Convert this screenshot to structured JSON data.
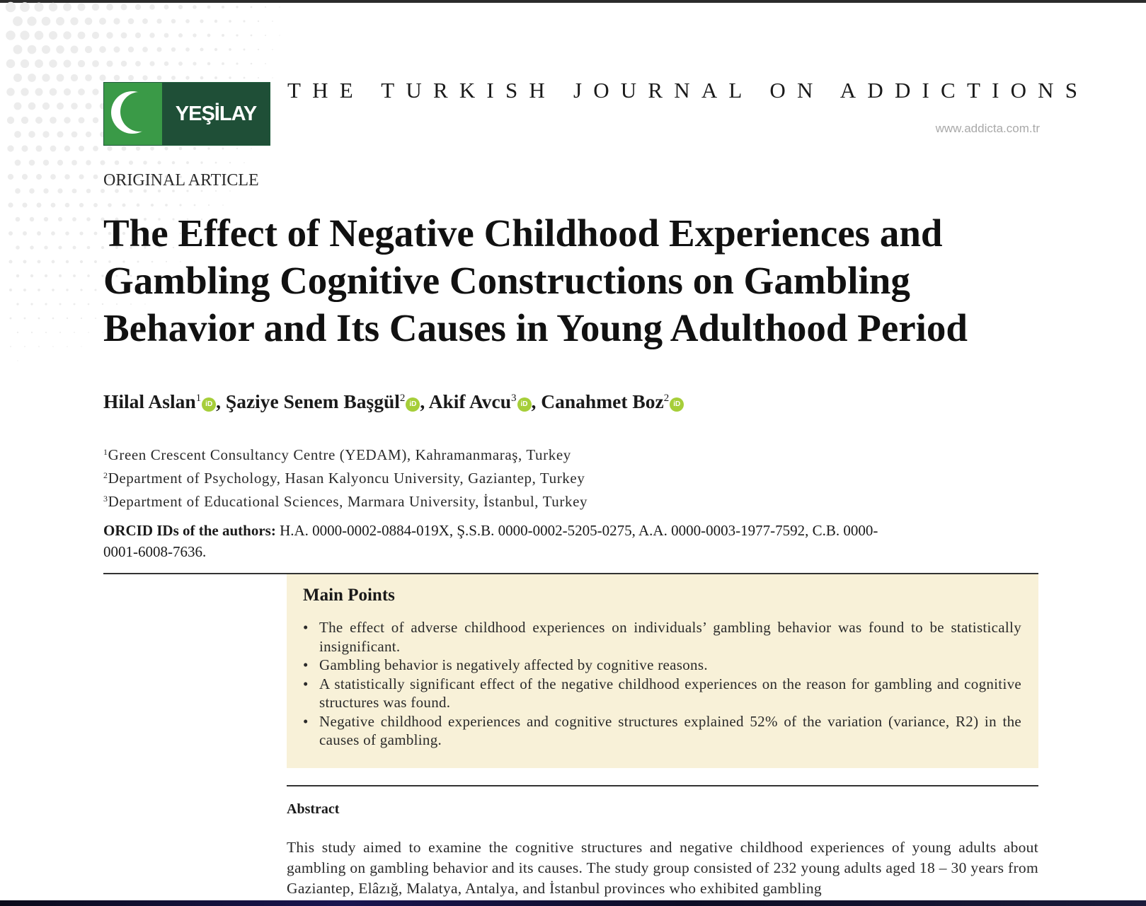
{
  "journal": {
    "logo_text": "YEŞİLAY",
    "title": "THE TURKISH JOURNAL ON ADDICTIONS",
    "url": "www.addicta.com.tr"
  },
  "article": {
    "type": "ORIGINAL ARTICLE",
    "title": "The Effect of Negative Childhood Experiences and Gambling Cognitive Constructions on Gambling Behavior and Its Causes in Young Adulthood Period"
  },
  "authors": [
    {
      "name": "Hilal Aslan",
      "affil": "1"
    },
    {
      "name": "Şaziye Senem Başgül",
      "affil": "2"
    },
    {
      "name": "Akif Avcu",
      "affil": "3"
    },
    {
      "name": "Canahmet Boz",
      "affil": "2"
    }
  ],
  "author_separator": ", ",
  "orcid_icon_text": "iD",
  "affiliations": [
    {
      "num": "1",
      "text": "Green Crescent Consultancy Centre (YEDAM), Kahramanmaraş, Turkey"
    },
    {
      "num": "2",
      "text": "Department of Psychology, Hasan Kalyoncu University, Gaziantep, Turkey"
    },
    {
      "num": "3",
      "text": "Department of Educational Sciences, Marmara University, İstanbul, Turkey"
    }
  ],
  "orcid": {
    "label": "ORCID IDs of the authors:",
    "text": " H.A. 0000-0002-0884-019X, Ş.S.B. 0000-0002-5205-0275, A.A. 0000-0003-1977-7592, C.B. 0000-0001-6008-7636."
  },
  "main_points": {
    "heading": "Main Points",
    "items": [
      "The effect of adverse childhood experiences on individuals’ gambling behavior was found to be statistically insignificant.",
      "Gambling behavior is negatively affected by cognitive reasons.",
      "A statistically significant effect of the negative childhood experiences on the reason for gambling and cognitive structures was found.",
      "Negative childhood experiences and cognitive structures explained 52% of the variation (variance, R2) in the causes of gambling."
    ]
  },
  "abstract": {
    "heading": "Abstract",
    "text": "This study aimed to examine the cognitive structures and negative childhood experiences of young adults about gambling on gambling behavior and its causes. The study group consisted of 232 young adults aged 18 – 30 years from Gaziantep, Elâzığ, Malatya, Antalya, and İstanbul provinces who exhibited gambling"
  },
  "colors": {
    "logo_green": "#3a9a47",
    "logo_dark": "#1f4f37",
    "main_points_bg": "#f8f1d8",
    "orcid_green": "#a6ce39",
    "url_gray": "#a9a9a9"
  }
}
